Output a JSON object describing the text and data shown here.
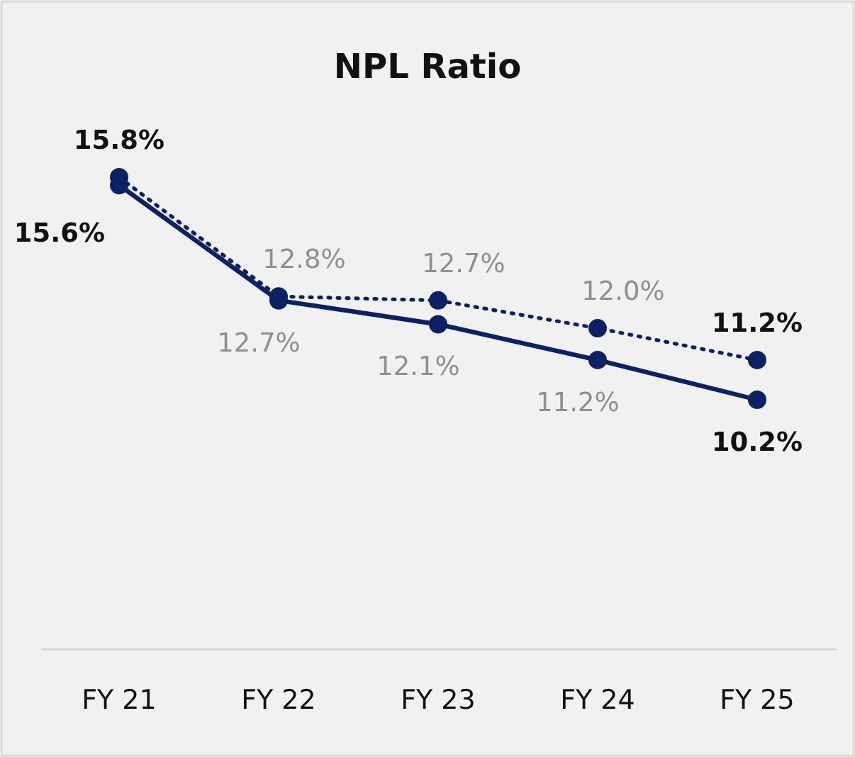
{
  "chart_data": {
    "type": "line",
    "title": "NPL Ratio",
    "categories": [
      "FY 21",
      "FY 22",
      "FY 23",
      "FY 24",
      "FY 25"
    ],
    "marker": "circle",
    "series": [
      {
        "color": "#0b2163",
        "line_style": "dotted",
        "values": [
          15.8,
          12.8,
          12.7,
          12.0,
          11.2
        ],
        "value_labels": [
          "15.8%",
          "12.8%",
          "12.7%",
          "12.0%",
          "11.2%"
        ]
      },
      {
        "color": "#0b2163",
        "line_style": "solid",
        "values": [
          15.6,
          12.7,
          12.1,
          11.2,
          10.2
        ],
        "value_labels": [
          "15.6%",
          "12.7%",
          "12.1%",
          "11.2%",
          "10.2%"
        ]
      }
    ]
  }
}
